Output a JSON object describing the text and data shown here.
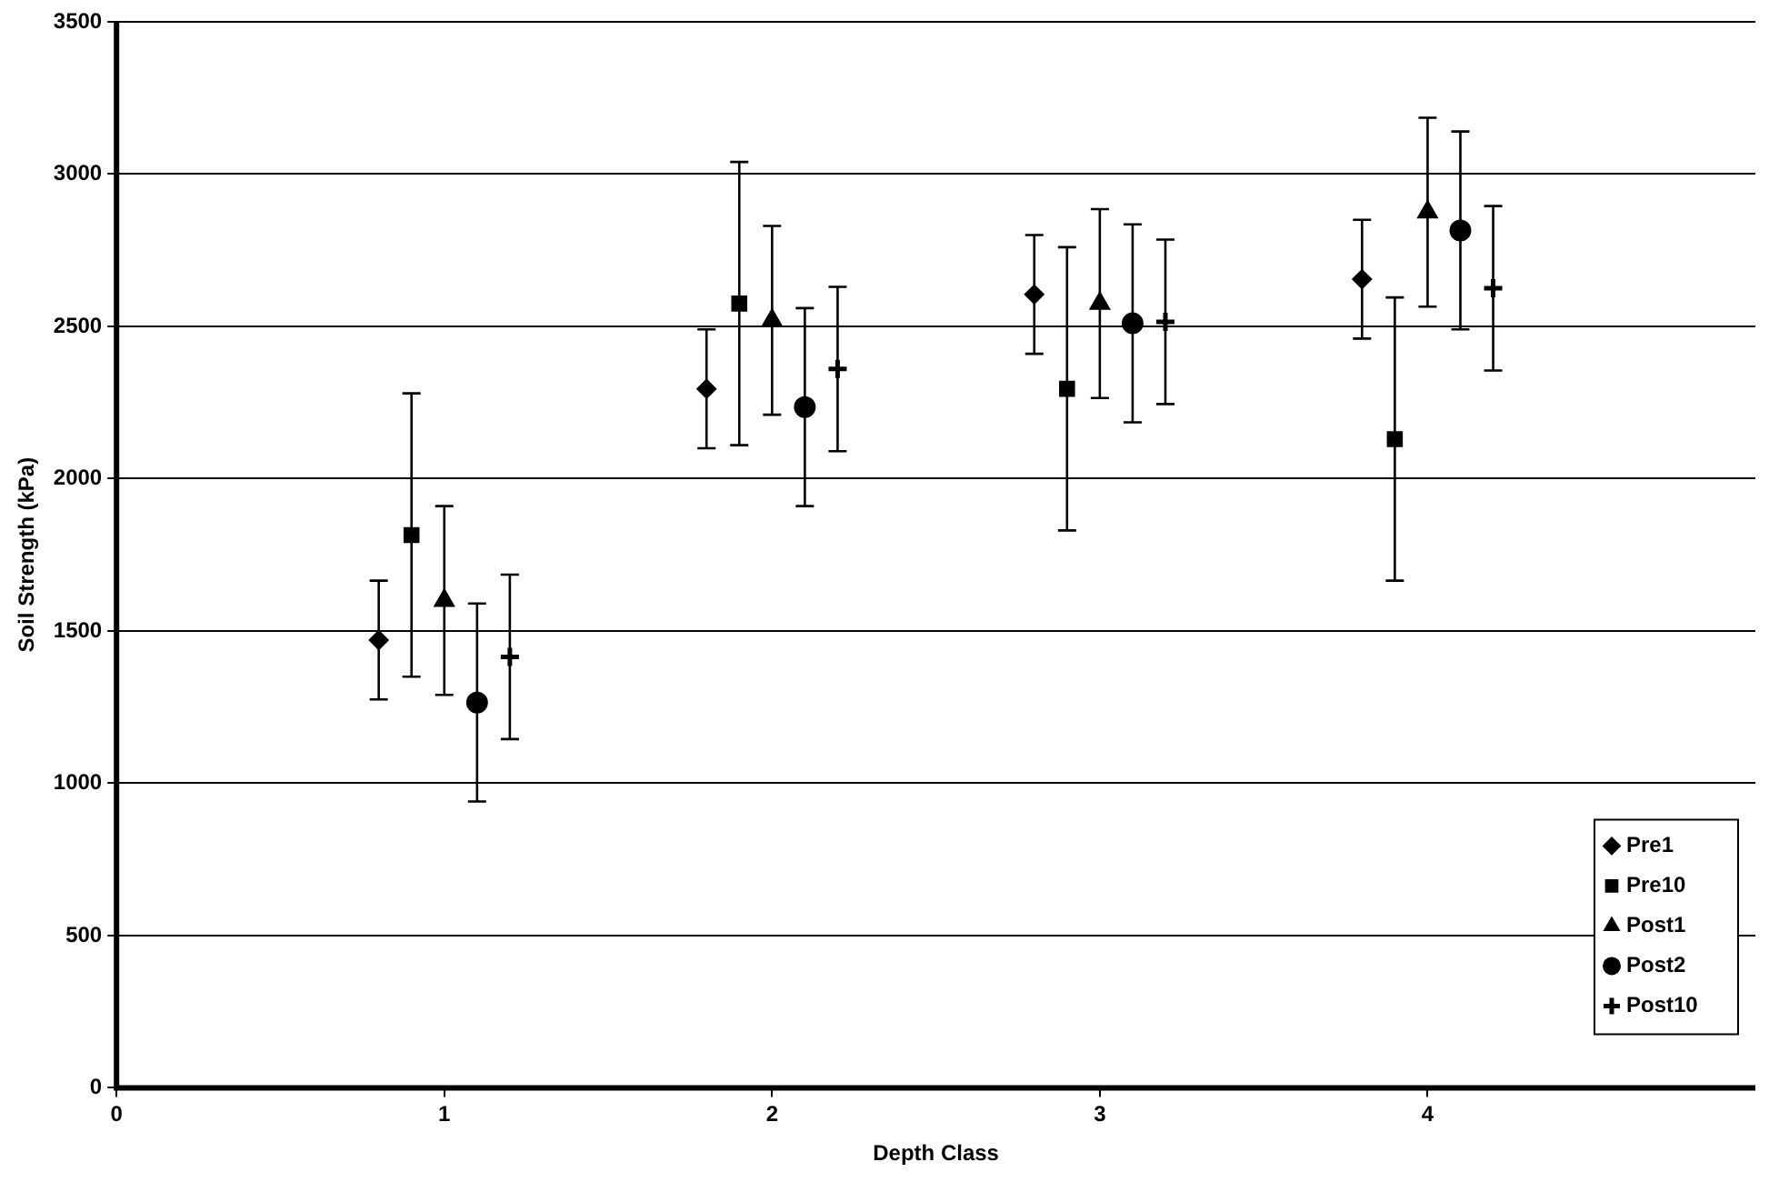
{
  "chart_data": {
    "type": "scatter",
    "xlabel": "Depth Class",
    "ylabel": "Soil Strength (kPa)",
    "xlim": [
      0,
      5
    ],
    "xticks": [
      0,
      1,
      2,
      3,
      4
    ],
    "ylim": [
      0,
      3500
    ],
    "yticks": [
      0,
      500,
      1000,
      1500,
      2000,
      2500,
      3000,
      3500
    ],
    "grid": "y",
    "legend": "bottom right",
    "series": [
      {
        "name": "Pre1",
        "color": "#000000",
        "marker": "diamond",
        "x": [
          0.8,
          1.8,
          2.8,
          3.8
        ],
        "values": [
          1470,
          2295,
          2605,
          2655
        ],
        "errors": [
          195,
          195,
          195,
          195
        ]
      },
      {
        "name": "Pre10",
        "color": "#000000",
        "marker": "square",
        "x": [
          0.9,
          1.9,
          2.9,
          3.9
        ],
        "values": [
          1815,
          2575,
          2295,
          2130
        ],
        "errors": [
          465,
          465,
          465,
          465
        ]
      },
      {
        "name": "Post1",
        "color": "#000000",
        "marker": "triangle",
        "x": [
          1.0,
          2.0,
          3.0,
          4.0
        ],
        "values": [
          1600,
          2520,
          2575,
          2875
        ],
        "errors": [
          310,
          310,
          310,
          310
        ]
      },
      {
        "name": "Post2",
        "color": "#000000",
        "marker": "circle",
        "x": [
          1.1,
          2.1,
          3.1,
          4.1
        ],
        "values": [
          1265,
          2235,
          2510,
          2815
        ],
        "errors": [
          325,
          325,
          325,
          325
        ]
      },
      {
        "name": "Post10",
        "color": "#000000",
        "marker": "cross",
        "x": [
          1.2,
          2.2,
          3.2,
          4.2
        ],
        "values": [
          1415,
          2360,
          2515,
          2625
        ],
        "errors": [
          270,
          270,
          270,
          270
        ]
      }
    ]
  }
}
